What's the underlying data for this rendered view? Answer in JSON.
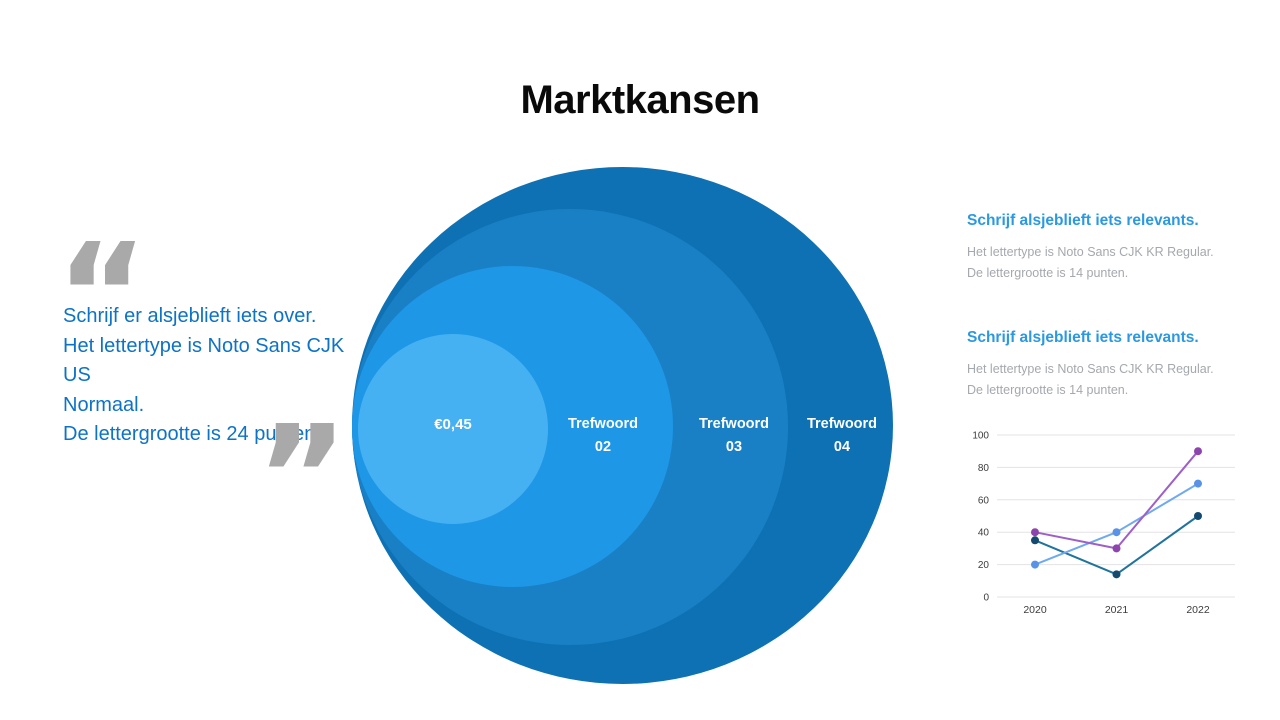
{
  "slide": {
    "title": "Marktkansen"
  },
  "quote_block": {
    "open_quote_glyph": "“",
    "close_quote_glyph": "”",
    "lines": [
      "Schrijf er alsjeblieft iets over.",
      "Het lettertype is Noto Sans CJK US",
      "Normaal.",
      "De lettergrootte is 24 punten."
    ],
    "text_color": "#0d73c6",
    "quote_mark_color": "#a9a9a9"
  },
  "venn": {
    "circles": [
      {
        "line1": "Trefwoord",
        "line2": "04",
        "color": "#0e71b4"
      },
      {
        "line1": "Trefwoord",
        "line2": "03",
        "color": "#1a80c6"
      },
      {
        "line1": "Trefwoord",
        "line2": "02",
        "color": "#1e97e6"
      },
      {
        "line1": "€0,45",
        "line2": "",
        "color": "#45b1f2"
      }
    ]
  },
  "info_blocks": [
    {
      "heading": "Schrijf alsjeblieft iets relevants.",
      "lines": [
        "Het lettertype is Noto Sans CJK KR Regular.",
        "De lettergrootte is 14 punten."
      ]
    },
    {
      "heading": "Schrijf alsjeblieft iets relevants.",
      "lines": [
        "Het lettertype is Noto Sans CJK KR Regular.",
        "De lettergrootte is 14 punten."
      ]
    }
  ],
  "colors": {
    "heading_blue": "#2b99e0",
    "quote_text_blue": "#0d73c6",
    "body_gray": "#a5a8ae",
    "title_black": "#0a0a0a"
  },
  "chart_data": {
    "type": "line",
    "title": "",
    "xlabel": "",
    "ylabel": "",
    "x": [
      "2020",
      "2021",
      "2022"
    ],
    "series": [
      {
        "name": "dark-blue",
        "color": "#20749c",
        "marker_color": "#154a70",
        "values": [
          35,
          14,
          50
        ]
      },
      {
        "name": "light-blue",
        "color": "#6faaf0",
        "marker_color": "#5a92e6",
        "values": [
          20,
          40,
          70
        ]
      },
      {
        "name": "purple",
        "color": "#9e5fc8",
        "marker_color": "#8d44ad",
        "values": [
          40,
          30,
          90
        ]
      }
    ],
    "ylim": [
      0,
      100
    ],
    "yticks": [
      0,
      20,
      40,
      60,
      80,
      100
    ],
    "grid": true,
    "legend_position": "none"
  }
}
